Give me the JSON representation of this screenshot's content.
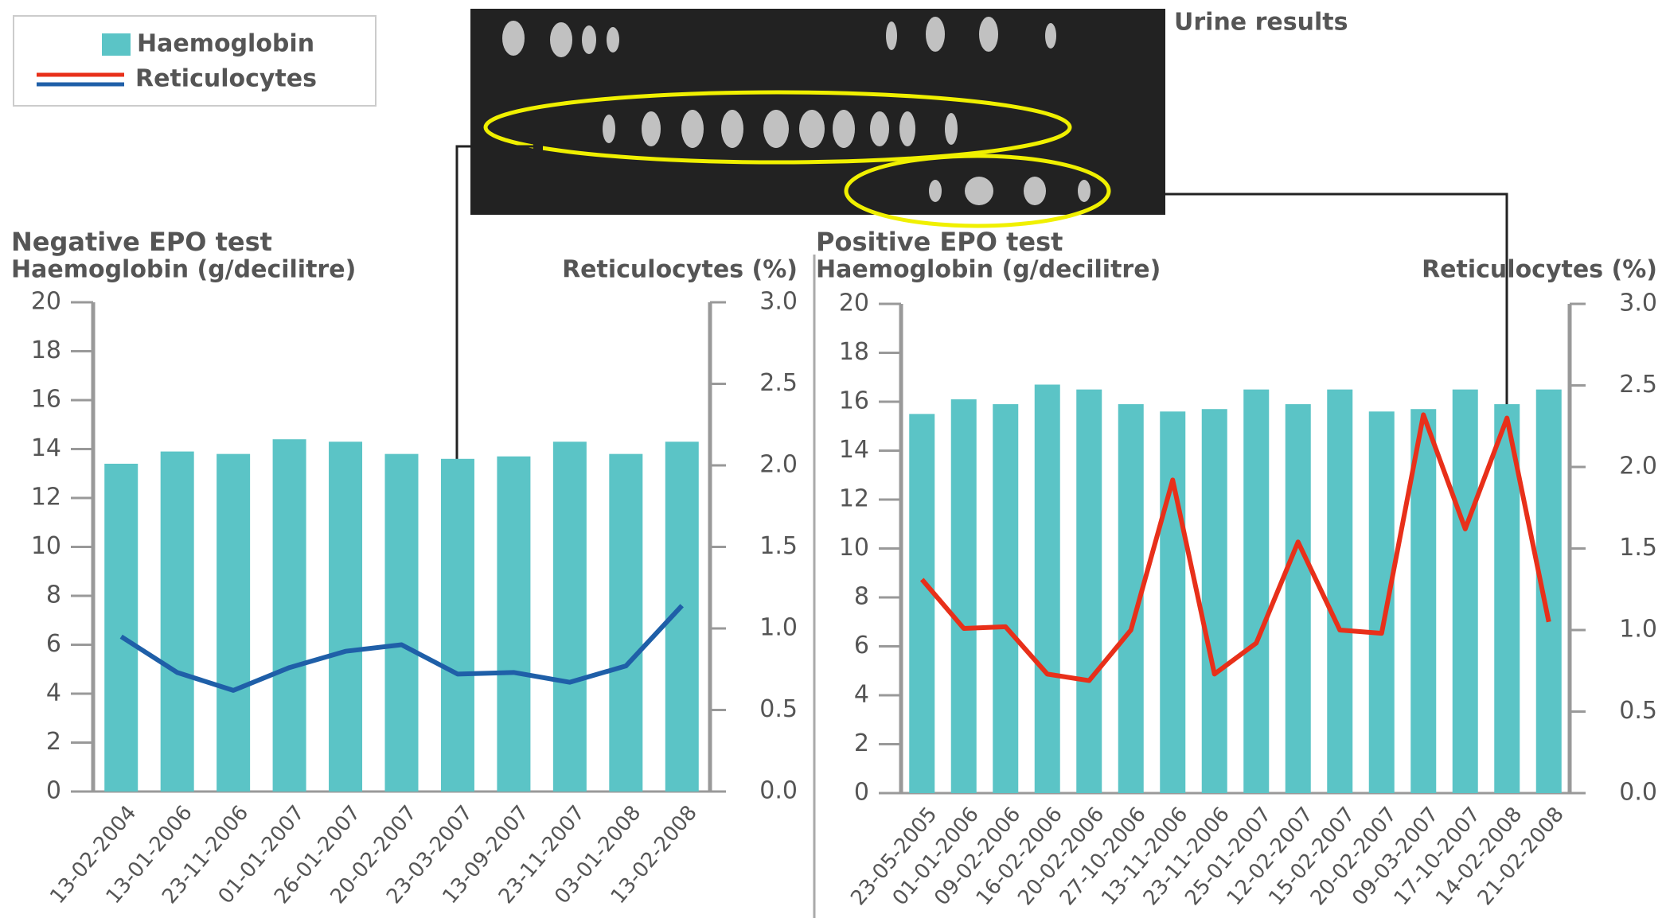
{
  "chart_data": [
    {
      "type": "bar-line",
      "title": "Negative EPO test",
      "y_label": "Haemoglobin (g/decilitre)",
      "y2_label": "Reticulocytes (%)",
      "categories": [
        "13-02-2004",
        "13-01-2006",
        "23-11-2006",
        "01-01-2007",
        "26-01-2007",
        "20-02-2007",
        "23-03-2007",
        "13-09-2007",
        "23-11-2007",
        "03-01-2008",
        "13-02-2008"
      ],
      "series": [
        {
          "name": "Haemoglobin",
          "color": "#5bc4c6",
          "type": "bar",
          "values": [
            13.4,
            13.9,
            13.8,
            14.4,
            14.3,
            13.8,
            13.6,
            13.7,
            14.3,
            13.8,
            14.3
          ]
        },
        {
          "name": "Reticulocytes",
          "color": "#1f5fa8",
          "type": "line",
          "axis": "y2",
          "values": [
            0.95,
            0.73,
            0.62,
            0.76,
            0.86,
            0.9,
            0.72,
            0.73,
            0.67,
            0.77,
            1.14
          ]
        }
      ],
      "ylim": [
        0,
        20
      ],
      "yticks": [
        0,
        2,
        4,
        6,
        8,
        10,
        12,
        14,
        16,
        18,
        20
      ],
      "y2lim": [
        0,
        3
      ],
      "y2ticks": [
        {
          "value": 0,
          "label": "0.0"
        },
        0.5,
        {
          "value": 1,
          "label": "1.0"
        },
        1.5,
        {
          "value": 2,
          "label": "2.0"
        },
        2.5,
        {
          "value": 3,
          "label": "3.0"
        }
      ]
    },
    {
      "type": "bar-line",
      "title": "Positive EPO test",
      "y_label": "Haemoglobin (g/decilitre)",
      "y2_label": "Reticulocytes (%)",
      "categories": [
        "23-05-2005",
        "01-01-2006",
        "09-02-2006",
        "16-02-2006",
        "20-02-2006",
        "27-10-2006",
        "13-11-2006",
        "23-11-2006",
        "25-01-2007",
        "12-02-2007",
        "15-02-2007",
        "20-02-2007",
        "09-03-2007",
        "17-10-2007",
        "14-02-2008",
        "21-02-2008"
      ],
      "series": [
        {
          "name": "Haemoglobin",
          "color": "#5bc4c6",
          "type": "bar",
          "values": [
            15.5,
            16.1,
            15.9,
            16.7,
            16.5,
            15.9,
            15.6,
            15.7,
            16.5,
            15.9,
            16.5,
            15.6,
            15.7,
            16.5,
            15.9,
            16.5
          ]
        },
        {
          "name": "Reticulocytes",
          "color": "#e8301a",
          "type": "line",
          "axis": "y2",
          "values": [
            1.31,
            1.01,
            1.02,
            0.73,
            0.69,
            1.0,
            1.92,
            0.73,
            0.92,
            1.54,
            1.0,
            0.98,
            2.32,
            1.62,
            2.3,
            1.05
          ]
        }
      ],
      "ylim": [
        0,
        20
      ],
      "yticks": [
        0,
        2,
        4,
        6,
        8,
        10,
        12,
        14,
        16,
        18,
        20
      ],
      "y2lim": [
        0,
        3
      ],
      "y2ticks": [
        {
          "value": 0,
          "label": "0.0"
        },
        0.5,
        {
          "value": 1,
          "label": "1.0"
        },
        1.5,
        {
          "value": 2,
          "label": "2.0"
        },
        2.5,
        {
          "value": 3,
          "label": "3.0"
        }
      ]
    }
  ],
  "caption": "Urine results"
}
